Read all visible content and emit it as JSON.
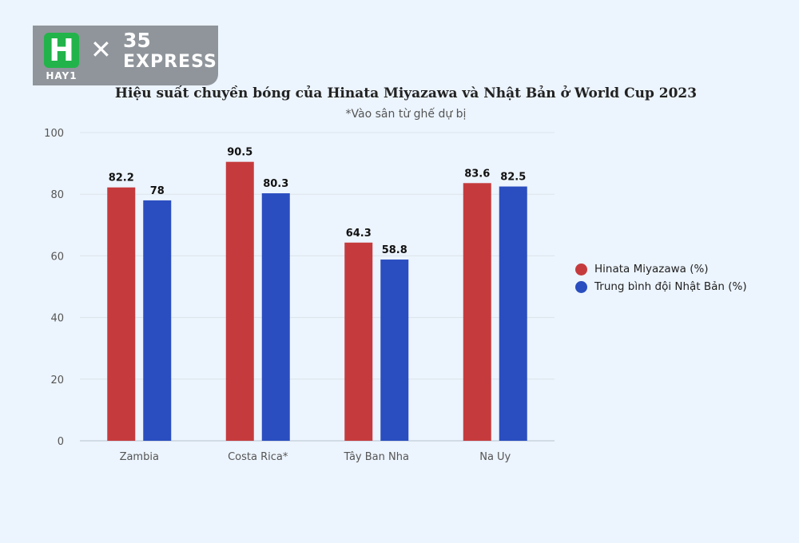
{
  "logo": {
    "h_letter": "H",
    "h_sub": "HAY1",
    "cross": "✕",
    "num": "35",
    "word": "EXPRESS"
  },
  "colors": {
    "series_1": "#c53b3d",
    "series_2": "#2a4ec0"
  },
  "chart_data": {
    "type": "bar",
    "title": "Hiệu suất chuyền bóng của Hinata Miyazawa và Nhật Bản ở World Cup 2023",
    "subtitle": "*Vào sân từ ghế dự bị",
    "categories": [
      "Zambia",
      "Costa Rica*",
      "Tây Ban Nha",
      "Na Uy"
    ],
    "series": [
      {
        "name": "Hinata Miyazawa (%)",
        "values": [
          82.2,
          90.5,
          64.3,
          83.6
        ]
      },
      {
        "name": "Trung bình đội Nhật Bản (%)",
        "values": [
          78,
          80.3,
          58.8,
          82.5
        ]
      }
    ],
    "ylim": [
      0,
      100
    ],
    "yticks": [
      0,
      20,
      40,
      60,
      80,
      100
    ],
    "grid": true,
    "legend": "right"
  }
}
